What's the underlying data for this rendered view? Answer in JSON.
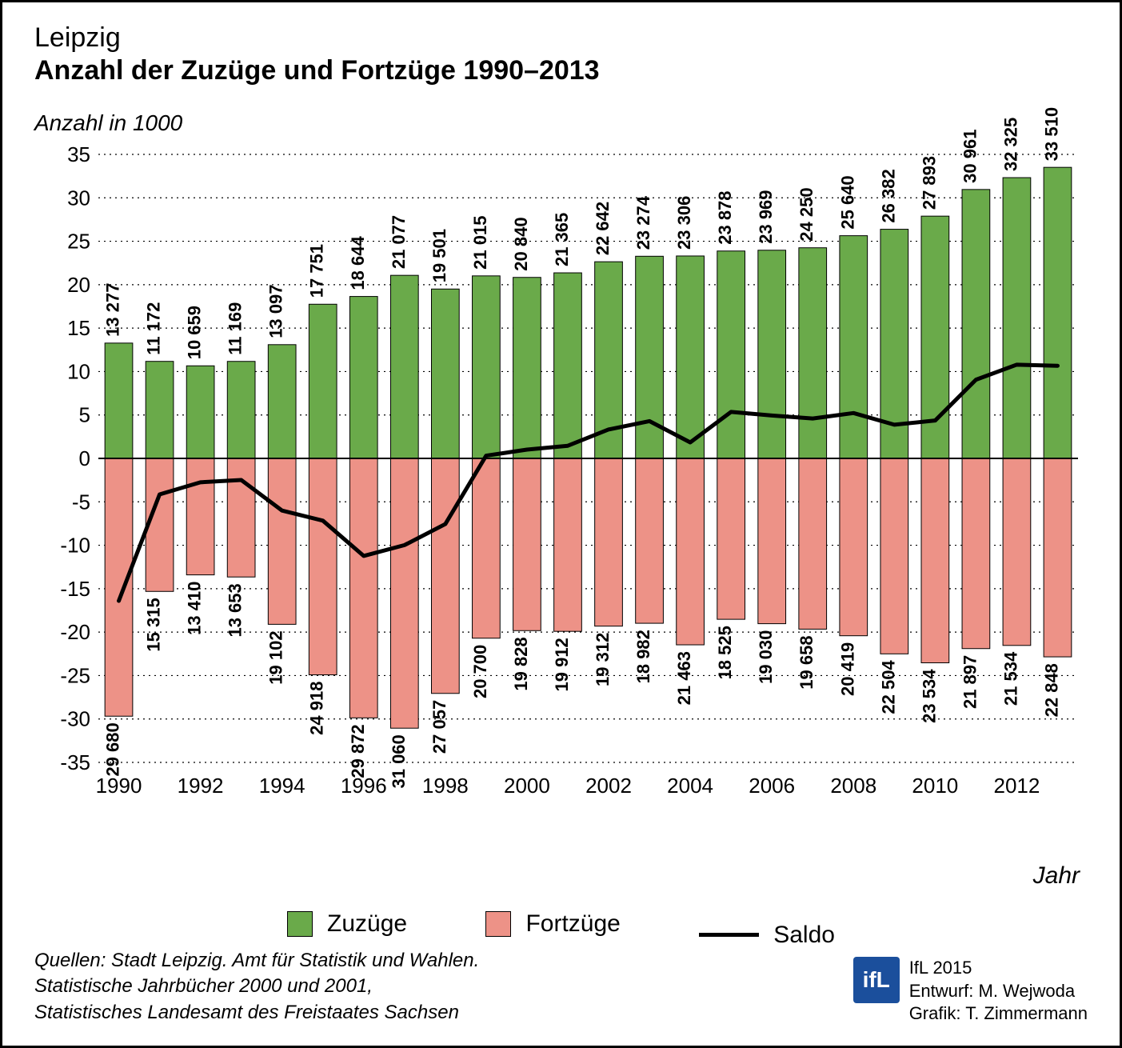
{
  "header": {
    "line1": "Leipzig",
    "line2": "Anzahl der Zuzüge und Fortzüge 1990–2013"
  },
  "yaxis_title": "Anzahl in 1000",
  "xaxis_title": "Jahr",
  "legend": {
    "zuzuege": "Zuzüge",
    "fortzuege": "Fortzüge",
    "saldo": "Saldo"
  },
  "sources": {
    "l1": "Quellen: Stadt Leipzig. Amt für Statistik und Wahlen.",
    "l2": "Statistische Jahrbücher 2000 und 2001,",
    "l3": "Statistisches Landesamt des Freistaates Sachsen"
  },
  "credit": {
    "year": "IfL 2015",
    "design": "Entwurf: M. Wejwoda",
    "gfx": "Grafik: T. Zimmermann",
    "logo": "ifL"
  },
  "chart": {
    "type": "bar+line",
    "ylim": [
      -35,
      35
    ],
    "ytick_step": 5,
    "x_tick_years": [
      1990,
      1992,
      1994,
      1996,
      1998,
      2000,
      2002,
      2004,
      2006,
      2008,
      2010,
      2012
    ],
    "bar_color_pos": "#6aaa4a",
    "bar_color_neg": "#ed9287",
    "bar_stroke": "#000000",
    "line_color": "#000000",
    "line_width": 5,
    "grid_color": "#000000",
    "grid_dash": "2,5",
    "axis_fontsize": 26,
    "barlabel_fontsize": 22,
    "bar_width_ratio": 0.68,
    "background": "#ffffff",
    "years": [
      1990,
      1991,
      1992,
      1993,
      1994,
      1995,
      1996,
      1997,
      1998,
      1999,
      2000,
      2001,
      2002,
      2003,
      2004,
      2005,
      2006,
      2007,
      2008,
      2009,
      2010,
      2011,
      2012,
      2013
    ],
    "zuzuege": [
      13277,
      11172,
      10659,
      11169,
      13097,
      17751,
      18644,
      21077,
      19501,
      21015,
      20840,
      21365,
      22642,
      23274,
      23306,
      23878,
      23969,
      24250,
      25640,
      26382,
      27893,
      30961,
      32325,
      33510
    ],
    "fortzuege": [
      29680,
      15315,
      13410,
      13653,
      19102,
      24918,
      29872,
      31060,
      27057,
      20700,
      19828,
      19912,
      19312,
      18982,
      21463,
      18525,
      19030,
      19658,
      20419,
      22504,
      23534,
      21897,
      21534,
      22848
    ]
  }
}
